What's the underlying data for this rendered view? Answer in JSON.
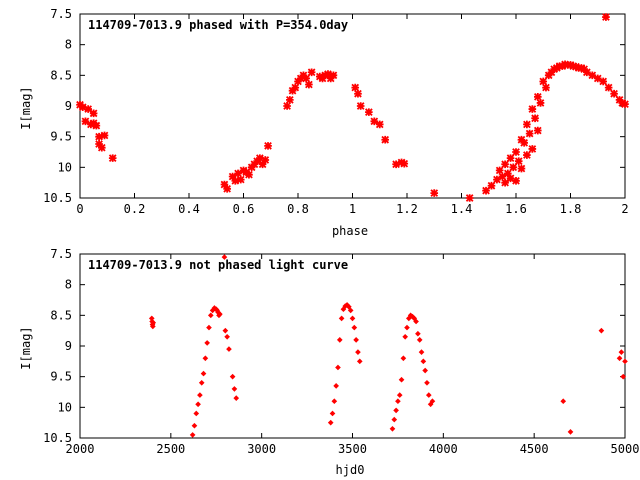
{
  "chart_data": [
    {
      "type": "scatter",
      "title": "114709-7013.9 phased with P=354.0day",
      "xlabel": "phase",
      "ylabel": "I[mag]",
      "xlim": [
        0,
        2
      ],
      "ylim": [
        7.5,
        10.5
      ],
      "y_inverted": true,
      "grid": false,
      "legend": "none",
      "marker_color": "#ff0000",
      "marker_shape": "star",
      "x_ticks": [
        0,
        0.2,
        0.4,
        0.6,
        0.8,
        1,
        1.2,
        1.4,
        1.6,
        1.8,
        2
      ],
      "x_tick_labels": [
        "0",
        "0.2",
        "0.4",
        "0.6",
        "0.8",
        "1",
        "1.2",
        "1.4",
        "1.6",
        "1.8",
        "2"
      ],
      "y_ticks": [
        7.5,
        8,
        8.5,
        9,
        9.5,
        10,
        10.5
      ],
      "y_tick_labels": [
        "7.5",
        "8",
        "8.5",
        "9",
        "9.5",
        "10",
        "10.5"
      ],
      "series": [
        {
          "x": [
            0.0,
            0.01,
            0.02,
            0.03,
            0.04,
            0.05,
            0.05,
            0.06,
            0.07,
            0.07,
            0.08,
            0.09,
            0.12,
            0.53,
            0.54,
            0.56,
            0.57,
            0.58,
            0.59,
            0.6,
            0.61,
            0.62,
            0.63,
            0.64,
            0.65,
            0.66,
            0.67,
            0.68,
            0.69,
            0.76,
            0.77,
            0.78,
            0.79,
            0.8,
            0.81,
            0.82,
            0.83,
            0.84,
            0.85,
            0.88,
            0.89,
            0.9,
            0.91,
            0.92,
            0.93,
            1.01,
            1.02,
            1.03,
            1.06,
            1.08,
            1.1,
            1.12,
            1.16,
            1.18,
            1.19,
            1.3,
            1.43,
            1.49,
            1.51,
            1.53,
            1.54,
            1.55,
            1.56,
            1.57,
            1.58,
            1.59,
            1.6,
            1.61,
            1.62,
            1.63,
            1.64,
            1.65,
            1.66,
            1.67,
            1.68,
            1.69,
            1.7,
            1.71,
            1.72,
            1.73,
            1.74,
            1.75,
            1.76,
            1.77,
            1.78,
            1.79,
            1.8,
            1.81,
            1.82,
            1.83,
            1.84,
            1.85,
            1.86,
            1.88,
            1.9,
            1.92,
            1.94,
            1.96,
            1.98,
            1.99,
            2.0,
            1.93,
            1.56,
            1.58,
            1.6,
            1.62,
            1.64,
            1.66,
            1.68
          ],
          "y": [
            8.98,
            9.02,
            9.25,
            9.05,
            9.3,
            9.12,
            9.28,
            9.32,
            9.5,
            9.62,
            9.68,
            9.48,
            9.85,
            10.28,
            10.35,
            10.15,
            10.22,
            10.1,
            10.2,
            10.05,
            10.08,
            10.12,
            10.0,
            9.95,
            9.9,
            9.85,
            9.95,
            9.88,
            9.65,
            9.0,
            8.9,
            8.75,
            8.7,
            8.6,
            8.55,
            8.5,
            8.55,
            8.65,
            8.45,
            8.52,
            8.55,
            8.5,
            8.48,
            8.55,
            8.5,
            8.7,
            8.8,
            9.0,
            9.1,
            9.25,
            9.3,
            9.55,
            9.95,
            9.92,
            9.94,
            10.42,
            10.5,
            10.38,
            10.3,
            10.2,
            10.05,
            10.15,
            9.95,
            10.1,
            9.85,
            10.0,
            9.75,
            9.9,
            9.55,
            9.6,
            9.3,
            9.45,
            9.05,
            9.2,
            8.85,
            8.95,
            8.6,
            8.7,
            8.5,
            8.45,
            8.4,
            8.38,
            8.35,
            8.35,
            8.32,
            8.33,
            8.33,
            8.35,
            8.36,
            8.38,
            8.38,
            8.4,
            8.45,
            8.5,
            8.55,
            8.6,
            8.7,
            8.8,
            8.9,
            8.95,
            8.97,
            7.55,
            10.25,
            10.18,
            10.22,
            10.02,
            9.8,
            9.7,
            9.4
          ]
        }
      ]
    },
    {
      "type": "scatter",
      "title": "114709-7013.9 not phased light curve",
      "xlabel": "hjd0",
      "ylabel": "I[mag]",
      "xlim": [
        2000,
        5000
      ],
      "ylim": [
        7.5,
        10.5
      ],
      "y_inverted": true,
      "grid": false,
      "legend": "none",
      "marker_color": "#ff0000",
      "marker_shape": "diamond",
      "x_ticks": [
        2000,
        2500,
        3000,
        3500,
        4000,
        4500,
        5000
      ],
      "x_tick_labels": [
        "2000",
        "2500",
        "3000",
        "3500",
        "4000",
        "4500",
        "5000"
      ],
      "y_ticks": [
        7.5,
        8,
        8.5,
        9,
        9.5,
        10,
        10.5
      ],
      "y_tick_labels": [
        "7.5",
        "8",
        "8.5",
        "9",
        "9.5",
        "10",
        "10.5"
      ],
      "series": [
        {
          "x": [
            2395,
            2397,
            2399,
            2401,
            2403,
            2620,
            2630,
            2640,
            2650,
            2660,
            2670,
            2680,
            2690,
            2700,
            2710,
            2720,
            2730,
            2740,
            2750,
            2755,
            2760,
            2765,
            2770,
            2795,
            2800,
            2810,
            2820,
            2840,
            2850,
            2860,
            3380,
            3390,
            3400,
            3410,
            3420,
            3430,
            3440,
            3450,
            3460,
            3470,
            3480,
            3490,
            3500,
            3510,
            3520,
            3530,
            3540,
            3720,
            3730,
            3740,
            3750,
            3760,
            3770,
            3780,
            3790,
            3800,
            3810,
            3820,
            3830,
            3840,
            3850,
            3860,
            3870,
            3880,
            3890,
            3900,
            3910,
            3920,
            3930,
            3940,
            4660,
            4700,
            4870,
            4970,
            4980,
            4990,
            5000
          ],
          "y": [
            8.55,
            8.6,
            8.65,
            8.68,
            8.62,
            10.45,
            10.3,
            10.1,
            9.95,
            9.8,
            9.6,
            9.45,
            9.2,
            8.95,
            8.7,
            8.5,
            8.42,
            8.38,
            8.4,
            8.42,
            8.45,
            8.5,
            8.48,
            7.55,
            8.75,
            8.85,
            9.05,
            9.5,
            9.7,
            9.85,
            10.25,
            10.1,
            9.9,
            9.65,
            9.35,
            8.9,
            8.55,
            8.4,
            8.35,
            8.33,
            8.36,
            8.42,
            8.55,
            8.7,
            8.9,
            9.1,
            9.25,
            10.35,
            10.2,
            10.05,
            9.9,
            9.8,
            9.55,
            9.2,
            8.85,
            8.7,
            8.55,
            8.5,
            8.52,
            8.55,
            8.6,
            8.8,
            8.9,
            9.1,
            9.25,
            9.4,
            9.6,
            9.8,
            9.95,
            9.9,
            9.9,
            10.4,
            8.75,
            9.2,
            9.1,
            9.5,
            9.25
          ]
        }
      ]
    }
  ]
}
